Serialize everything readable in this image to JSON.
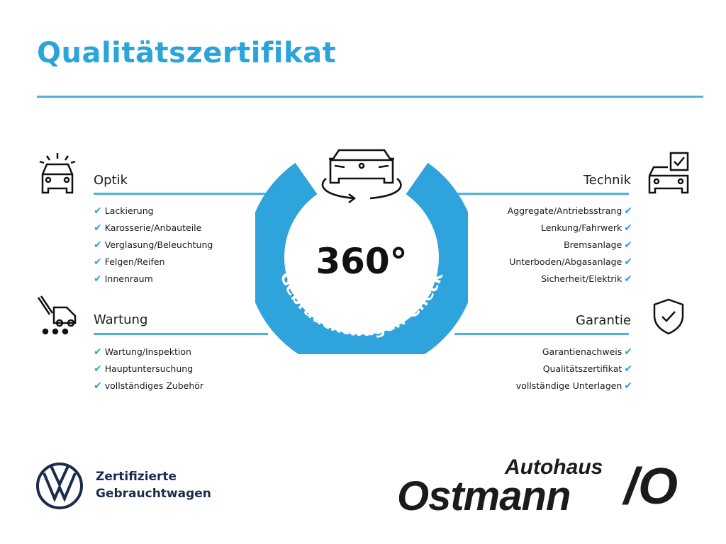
{
  "title": "Qualitätszertifikat",
  "accent_color": "#2aa4d9",
  "center": {
    "number": "360°",
    "ring_text": "Gebrauchtwagen-Check",
    "icon": "car-rotate-icon"
  },
  "sections": {
    "optik": {
      "heading": "Optik",
      "icon": "car-lights-icon",
      "items": [
        "Lackierung",
        "Karosserie/Anbauteile",
        "Verglasung/Beleuchtung",
        "Felgen/Reifen",
        "Innenraum"
      ]
    },
    "wartung": {
      "heading": "Wartung",
      "icon": "service-tools-icon",
      "items": [
        "Wartung/Inspektion",
        "Hauptuntersuchung",
        "vollständiges Zubehör"
      ]
    },
    "technik": {
      "heading": "Technik",
      "icon": "car-checklist-icon",
      "items": [
        "Aggregate/Antriebsstrang",
        "Lenkung/Fahrwerk",
        "Bremsanlage",
        "Unterboden/Abgasanlage",
        "Sicherheit/Elektrik"
      ]
    },
    "garantie": {
      "heading": "Garantie",
      "icon": "shield-check-icon",
      "items": [
        "Garantienachweis",
        "Qualitätszertifikat",
        "vollständige Unterlagen"
      ]
    }
  },
  "check_mark": "✔",
  "footer": {
    "vw_line1": "Zertifizierte",
    "vw_line2": "Gebrauchtwagen",
    "dealer_small": "Autohaus",
    "dealer_big": "Ostmann",
    "dealer_mark": "/O"
  }
}
